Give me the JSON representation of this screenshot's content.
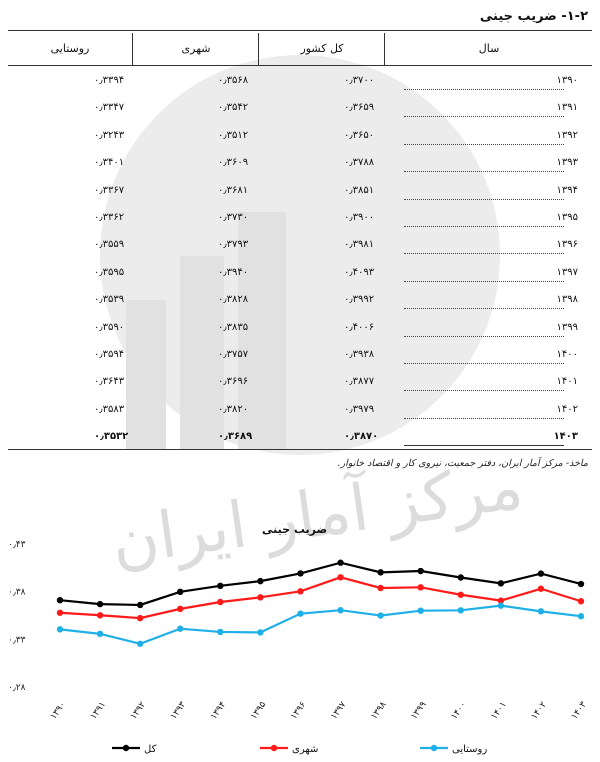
{
  "title": "۱-۲- ضریب جینی",
  "table": {
    "headers": {
      "year": "سال",
      "total": "کل کشور",
      "urban": "شهری",
      "rural": "روستایی"
    },
    "rows": [
      {
        "year": "۱۳۹۰",
        "total": "۰٫۳۷۰۰",
        "urban": "۰٫۳۵۶۸",
        "rural": "۰٫۳۳۹۴"
      },
      {
        "year": "۱۳۹۱",
        "total": "۰٫۳۶۵۹",
        "urban": "۰٫۳۵۴۲",
        "rural": "۰٫۳۳۴۷"
      },
      {
        "year": "۱۳۹۲",
        "total": "۰٫۳۶۵۰",
        "urban": "۰٫۳۵۱۲",
        "rural": "۰٫۳۲۴۳"
      },
      {
        "year": "۱۳۹۳",
        "total": "۰٫۳۷۸۸",
        "urban": "۰٫۳۶۰۹",
        "rural": "۰٫۳۴۰۱"
      },
      {
        "year": "۱۳۹۴",
        "total": "۰٫۳۸۵۱",
        "urban": "۰٫۳۶۸۱",
        "rural": "۰٫۳۳۶۷"
      },
      {
        "year": "۱۳۹۵",
        "total": "۰٫۳۹۰۰",
        "urban": "۰٫۳۷۳۰",
        "rural": "۰٫۳۳۶۲"
      },
      {
        "year": "۱۳۹۶",
        "total": "۰٫۳۹۸۱",
        "urban": "۰٫۳۷۹۳",
        "rural": "۰٫۳۵۵۹"
      },
      {
        "year": "۱۳۹۷",
        "total": "۰٫۴۰۹۳",
        "urban": "۰٫۳۹۴۰",
        "rural": "۰٫۳۵۹۵"
      },
      {
        "year": "۱۳۹۸",
        "total": "۰٫۳۹۹۲",
        "urban": "۰٫۳۸۲۸",
        "rural": "۰٫۳۵۳۹"
      },
      {
        "year": "۱۳۹۹",
        "total": "۰٫۴۰۰۶",
        "urban": "۰٫۳۸۳۵",
        "rural": "۰٫۳۵۹۰"
      },
      {
        "year": "۱۴۰۰",
        "total": "۰٫۳۹۳۸",
        "urban": "۰٫۳۷۵۷",
        "rural": "۰٫۳۵۹۴"
      },
      {
        "year": "۱۴۰۱",
        "total": "۰٫۳۸۷۷",
        "urban": "۰٫۳۶۹۶",
        "rural": "۰٫۳۶۴۳"
      },
      {
        "year": "۱۴۰۲",
        "total": "۰٫۳۹۷۹",
        "urban": "۰٫۳۸۲۰",
        "rural": "۰٫۳۵۸۳"
      },
      {
        "year": "۱۴۰۳",
        "total": "۰٫۳۸۷۰",
        "urban": "۰٫۳۶۸۹",
        "rural": "۰٫۳۵۳۲"
      }
    ]
  },
  "source": "ماخذ- مرکز آمار ایران، دفتر جمعیت، نیروی کار و اقتصاد خانوار.",
  "watermark_text": "مرکز آمار ایران",
  "chart_data": {
    "type": "line",
    "title": "ضریب جینی",
    "categories": [
      "۱۳۹۰",
      "۱۳۹۱",
      "۱۳۹۲",
      "۱۳۹۳",
      "۱۳۹۴",
      "۱۳۹۵",
      "۱۳۹۶",
      "۱۳۹۷",
      "۱۳۹۸",
      "۱۳۹۹",
      "۱۴۰۰",
      "۱۴۰۱",
      "۱۴۰۲",
      "۱۴۰۳"
    ],
    "ytick_labels": [
      "۰٫۴۳",
      "۰٫۳۸",
      "۰٫۳۳",
      "۰٫۲۸"
    ],
    "yticks": [
      0.43,
      0.38,
      0.33,
      0.28
    ],
    "ylim": [
      0.28,
      0.43
    ],
    "grid": false,
    "legend_position": "bottom",
    "series": [
      {
        "name": "کل",
        "color": "#000000",
        "values": [
          0.37,
          0.3659,
          0.365,
          0.3788,
          0.3851,
          0.39,
          0.3981,
          0.4093,
          0.3992,
          0.4006,
          0.3938,
          0.3877,
          0.3979,
          0.387
        ]
      },
      {
        "name": "شهری",
        "color": "#ff1a1a",
        "values": [
          0.3568,
          0.3542,
          0.3512,
          0.3609,
          0.3681,
          0.373,
          0.3793,
          0.394,
          0.3828,
          0.3835,
          0.3757,
          0.3696,
          0.382,
          0.3689
        ]
      },
      {
        "name": "روستایی",
        "color": "#1fb0e8",
        "values": [
          0.3394,
          0.3347,
          0.3243,
          0.3401,
          0.3367,
          0.3362,
          0.3559,
          0.3595,
          0.3539,
          0.359,
          0.3594,
          0.3643,
          0.3583,
          0.3532
        ]
      }
    ]
  }
}
